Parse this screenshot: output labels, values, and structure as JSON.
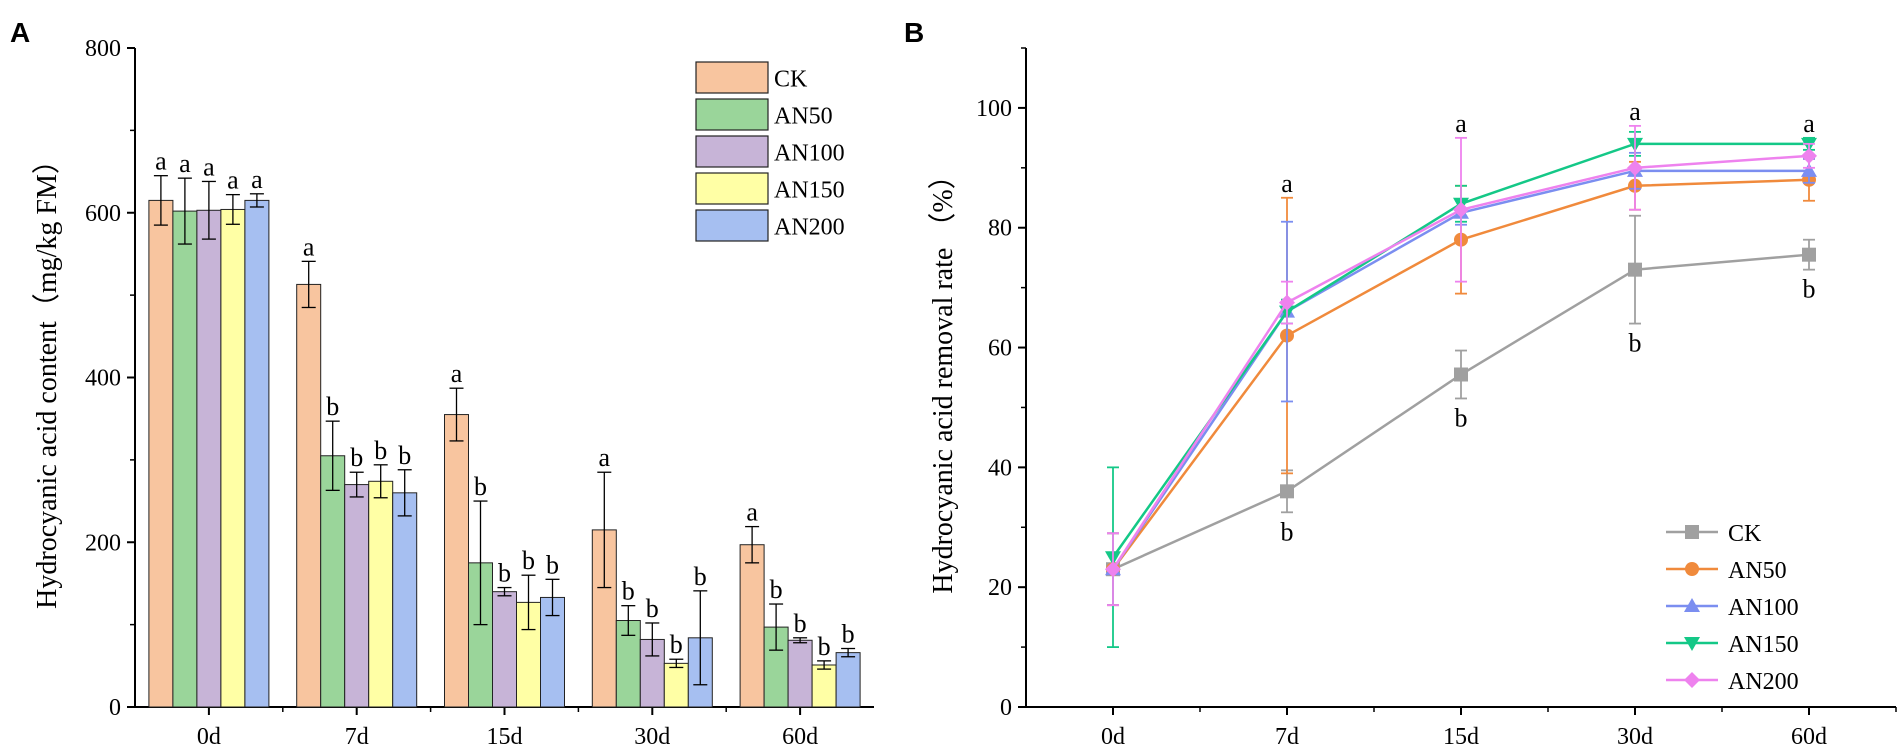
{
  "chart_data": [
    {
      "panel": "A",
      "type": "bar",
      "ylabel": "Hydrocyanic acid content（mg/kg FM）",
      "xlabel": "",
      "ylim": [
        0,
        800
      ],
      "yticks": [
        0,
        200,
        400,
        600,
        800
      ],
      "categories": [
        "0d",
        "7d",
        "15d",
        "30d",
        "60d"
      ],
      "legend_position": "top-right",
      "series": [
        {
          "name": "CK",
          "color": "#F8C59F",
          "values": [
            615,
            513,
            355,
            215,
            197
          ],
          "errors": [
            30,
            28,
            32,
            70,
            22
          ],
          "letters": [
            "a",
            "a",
            "a",
            "a",
            "a"
          ]
        },
        {
          "name": "AN50",
          "color": "#9AD59A",
          "values": [
            602,
            305,
            175,
            105,
            97
          ],
          "errors": [
            40,
            42,
            75,
            18,
            28
          ],
          "letters": [
            "a",
            "b",
            "b",
            "b",
            "b"
          ]
        },
        {
          "name": "AN100",
          "color": "#C7B4D7",
          "values": [
            603,
            270,
            140,
            82,
            81
          ],
          "errors": [
            35,
            15,
            5,
            20,
            3
          ],
          "letters": [
            "a",
            "b",
            "b",
            "b",
            "b"
          ]
        },
        {
          "name": "AN150",
          "color": "#FFFFA5",
          "values": [
            604,
            274,
            127,
            53,
            51
          ],
          "errors": [
            18,
            20,
            33,
            5,
            5
          ],
          "letters": [
            "a",
            "b",
            "b",
            "b",
            "b"
          ]
        },
        {
          "name": "AN200",
          "color": "#A6BFF1",
          "values": [
            615,
            260,
            133,
            84,
            66
          ],
          "errors": [
            8,
            28,
            22,
            57,
            5
          ],
          "letters": [
            "a",
            "b",
            "b",
            "b",
            "b"
          ]
        }
      ]
    },
    {
      "panel": "B",
      "type": "line",
      "ylabel": "Hydrocyanic acid removal rate （%）",
      "xlabel": "",
      "ylim": [
        0,
        110
      ],
      "yticks": [
        0,
        20,
        40,
        60,
        80,
        100
      ],
      "categories": [
        "0d",
        "7d",
        "15d",
        "30d",
        "60d"
      ],
      "legend_position": "bottom-right",
      "top_letters": [
        "",
        "a",
        "a",
        "a",
        "a"
      ],
      "ck_letters": [
        "",
        "b",
        "b",
        "b",
        "b"
      ],
      "series": [
        {
          "name": "CK",
          "color": "#A0A0A0",
          "marker": "square",
          "values": [
            23,
            36,
            55.5,
            73,
            75.5
          ],
          "errors": [
            6,
            3.5,
            4,
            9,
            2.5
          ]
        },
        {
          "name": "AN50",
          "color": "#F08A3C",
          "marker": "circle",
          "values": [
            23,
            62,
            78,
            87,
            88
          ],
          "errors": [
            6,
            23,
            9,
            4,
            3.5
          ]
        },
        {
          "name": "AN100",
          "color": "#7B8EF0",
          "marker": "triangle-up",
          "values": [
            23,
            66,
            82.5,
            89.5,
            89.5
          ],
          "errors": [
            6,
            15,
            2,
            3,
            2
          ]
        },
        {
          "name": "AN150",
          "color": "#14C887",
          "marker": "triangle-down",
          "values": [
            25,
            66,
            84,
            94,
            94
          ],
          "errors": [
            15,
            2,
            3,
            2,
            1
          ]
        },
        {
          "name": "AN200",
          "color": "#EE82EE",
          "marker": "diamond",
          "values": [
            23,
            67.5,
            83,
            90,
            92
          ],
          "errors": [
            6,
            3.5,
            12,
            7,
            2
          ]
        }
      ]
    }
  ]
}
